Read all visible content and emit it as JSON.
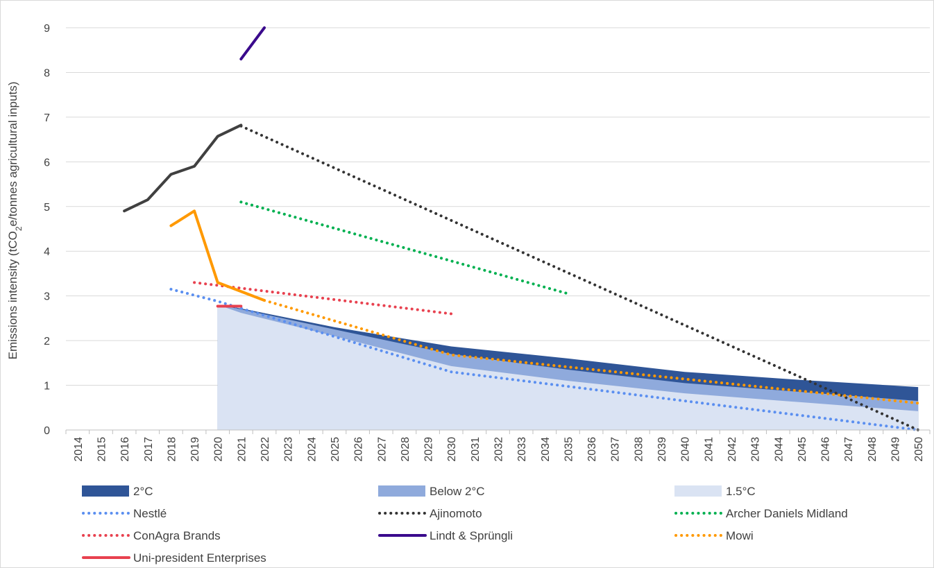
{
  "chart_data": {
    "type": "line",
    "title": "",
    "xlabel": "",
    "ylabel_main": "Emissions intensity (tCO",
    "ylabel_sub": "2",
    "ylabel_rest": "e/tonnes agricultural inputs)",
    "xlim": [
      2014,
      2050
    ],
    "ylim": [
      0,
      9
    ],
    "yticks": [
      "0",
      "1",
      "2",
      "3",
      "4",
      "5",
      "6",
      "7",
      "8",
      "9"
    ],
    "categories": [
      "2014",
      "2015",
      "2016",
      "2017",
      "2018",
      "2019",
      "2020",
      "2021",
      "2022",
      "2023",
      "2024",
      "2025",
      "2026",
      "2027",
      "2028",
      "2029",
      "2030",
      "2031",
      "2032",
      "2033",
      "2034",
      "2035",
      "2036",
      "2037",
      "2038",
      "2039",
      "2040",
      "2041",
      "2042",
      "2043",
      "2044",
      "2045",
      "2046",
      "2047",
      "2048",
      "2049",
      "2050"
    ],
    "grid": true,
    "legend_position": "bottom",
    "areas": [
      {
        "name": "2°C",
        "color": "#2f5597",
        "x": [
          2020,
          2021,
          2025,
          2030,
          2035,
          2040,
          2045,
          2050
        ],
        "y": [
          2.8,
          2.72,
          2.3,
          1.87,
          1.6,
          1.3,
          1.12,
          0.96
        ]
      },
      {
        "name": "Below 2°C",
        "color": "#8faadc",
        "x": [
          2020,
          2021,
          2025,
          2030,
          2035,
          2040,
          2045,
          2050
        ],
        "y": [
          2.8,
          2.7,
          2.25,
          1.7,
          1.35,
          1.05,
          0.85,
          0.65
        ]
      },
      {
        "name": "1.5°C",
        "color": "#dae3f3",
        "x": [
          2020,
          2021,
          2025,
          2030,
          2035,
          2040,
          2045,
          2050
        ],
        "y": [
          2.8,
          2.62,
          2.1,
          1.43,
          1.1,
          0.82,
          0.62,
          0.42
        ]
      }
    ],
    "series": [
      {
        "name": "Nestlé",
        "color": "#5b8ff0",
        "style": "dotted",
        "x": [
          2018,
          2020,
          2030,
          2050
        ],
        "y": [
          3.15,
          2.88,
          1.3,
          0.0
        ]
      },
      {
        "name": "Ajinomoto",
        "color": "#333333",
        "style": "dotted",
        "x": [
          2021,
          2050
        ],
        "y": [
          6.8,
          0.0
        ]
      },
      {
        "name": "Archer Daniels Midland",
        "color": "#00b050",
        "style": "dotted",
        "x": [
          2021,
          2035
        ],
        "y": [
          5.1,
          3.05
        ]
      },
      {
        "name": "ConAgra Brands",
        "color": "#e8414f",
        "style": "dotted",
        "x": [
          2019,
          2030
        ],
        "y": [
          3.3,
          2.6
        ]
      },
      {
        "name": "Lindt & Sprüngli",
        "color": "#3a0a8c",
        "style": "solid",
        "x": [
          2021,
          2022
        ],
        "y": [
          8.3,
          9.0
        ]
      },
      {
        "name": "Mowi",
        "color": "#ff9900",
        "style": "dotted",
        "x": [
          2022,
          2030,
          2050
        ],
        "y": [
          2.9,
          1.68,
          0.6
        ]
      },
      {
        "name": "Uni-president Enterprises",
        "color": "#e8414f",
        "style": "solid",
        "x": [
          2020,
          2021
        ],
        "y": [
          2.77,
          2.77
        ]
      },
      {
        "name": "Ajinomoto (historic)",
        "color": "#404040",
        "style": "solid",
        "legend": false,
        "x": [
          2016,
          2017,
          2018,
          2019,
          2020,
          2021
        ],
        "y": [
          4.9,
          5.15,
          5.72,
          5.9,
          6.57,
          6.82
        ]
      },
      {
        "name": "Mowi (historic)",
        "color": "#ff9900",
        "style": "solid",
        "legend": false,
        "x": [
          2018,
          2019,
          2020,
          2021,
          2022
        ],
        "y": [
          4.57,
          4.9,
          3.3,
          3.1,
          2.9
        ]
      }
    ]
  },
  "legend": {
    "rows": [
      [
        {
          "label": "2°C",
          "kind": "area",
          "color": "#2f5597"
        },
        {
          "label": "Below 2°C",
          "kind": "area",
          "color": "#8faadc"
        },
        {
          "label": "1.5°C",
          "kind": "area",
          "color": "#dae3f3"
        }
      ],
      [
        {
          "label": "Nestlé",
          "kind": "dotted",
          "color": "#5b8ff0"
        },
        {
          "label": "Ajinomoto",
          "kind": "dotted",
          "color": "#333333"
        },
        {
          "label": "Archer Daniels Midland",
          "kind": "dotted",
          "color": "#00b050"
        }
      ],
      [
        {
          "label": "ConAgra Brands",
          "kind": "dotted",
          "color": "#e8414f"
        },
        {
          "label": "Lindt & Sprüngli",
          "kind": "solid",
          "color": "#3a0a8c"
        },
        {
          "label": "Mowi",
          "kind": "dotted",
          "color": "#ff9900"
        }
      ],
      [
        {
          "label": "Uni-president Enterprises",
          "kind": "solid",
          "color": "#e8414f"
        }
      ]
    ]
  }
}
